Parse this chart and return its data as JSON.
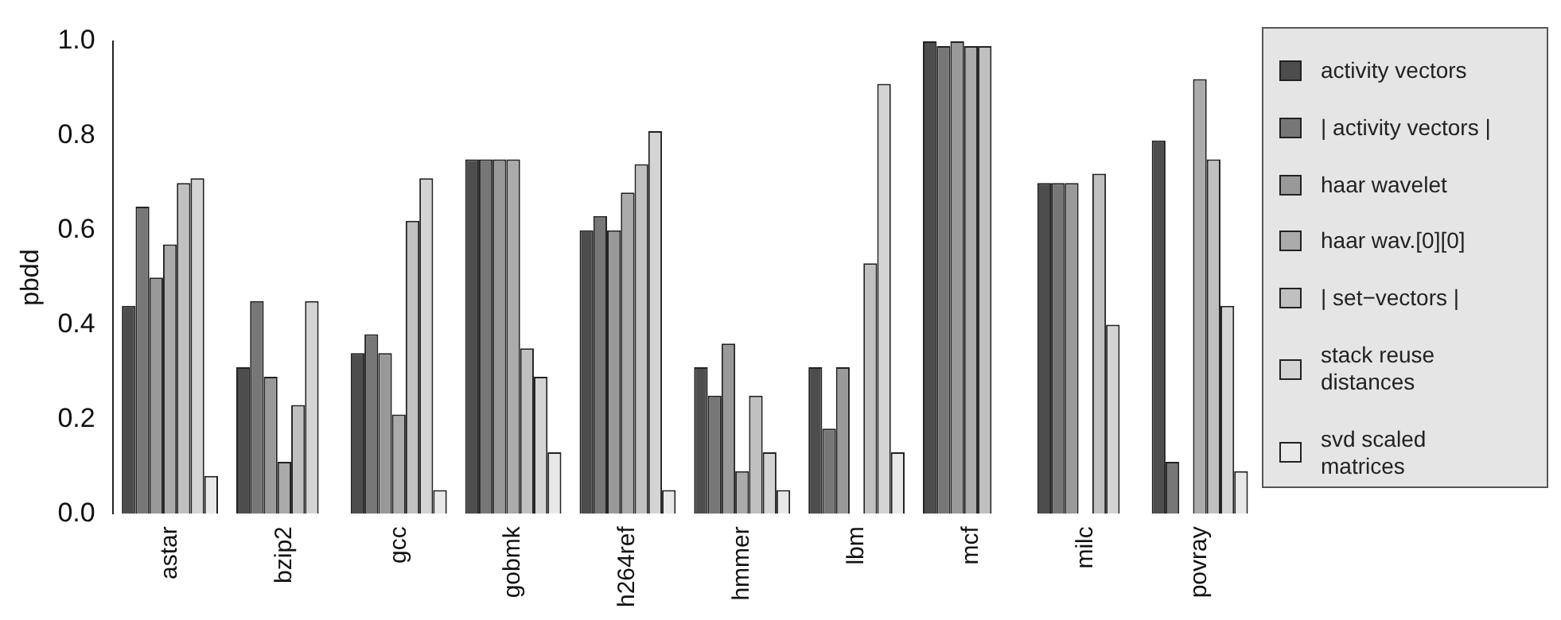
{
  "chart_data": {
    "type": "bar",
    "ylabel": "pbdd",
    "categories": [
      "astar",
      "bzip2",
      "gcc",
      "gobmk",
      "h264ref",
      "hmmer",
      "lbm",
      "mcf",
      "milc",
      "povray"
    ],
    "series": [
      {
        "name": "activity vectors",
        "color": "#4d4d4d",
        "values": [
          0.44,
          0.31,
          0.34,
          0.75,
          0.6,
          0.31,
          0.31,
          1.0,
          0.7,
          0.79
        ]
      },
      {
        "name": "| activity vectors |",
        "color": "#777777",
        "values": [
          0.65,
          0.45,
          0.38,
          0.75,
          0.63,
          0.25,
          0.18,
          0.99,
          0.7,
          0.11
        ]
      },
      {
        "name": "haar wavelet",
        "color": "#999999",
        "values": [
          0.5,
          0.29,
          0.34,
          0.75,
          0.6,
          0.36,
          0.31,
          1.0,
          0.7,
          0
        ]
      },
      {
        "name": "haar wav.[0][0]",
        "color": "#ababab",
        "values": [
          0.57,
          0.11,
          0.21,
          0.75,
          0.68,
          0.09,
          0,
          0.99,
          0,
          0.92
        ]
      },
      {
        "name": "| set−vectors |",
        "color": "#c0c0c0",
        "values": [
          0.7,
          0.23,
          0.62,
          0.35,
          0.74,
          0.25,
          0.53,
          0.99,
          0.72,
          0.75
        ]
      },
      {
        "name": "stack reuse distances",
        "color": "#d4d4d4",
        "values": [
          0.71,
          0.45,
          0.71,
          0.29,
          0.81,
          0.13,
          0.91,
          0,
          0.4,
          0.44
        ]
      },
      {
        "name": "svd scaled matrices",
        "color": "#e8e8e8",
        "values": [
          0.08,
          0,
          0.05,
          0.13,
          0.05,
          0.05,
          0.13,
          0,
          0,
          0.09
        ]
      }
    ],
    "ylim": [
      0,
      1
    ],
    "yticks": [
      {
        "value": 0,
        "label": "0.0"
      },
      {
        "value": 0.2,
        "label": "0.2"
      },
      {
        "value": 0.4,
        "label": "0.4"
      },
      {
        "value": 0.6,
        "label": "0.6"
      },
      {
        "value": 0.8,
        "label": "0.8"
      },
      {
        "value": 1,
        "label": "1.0"
      }
    ],
    "grid": false,
    "legend": "right"
  }
}
